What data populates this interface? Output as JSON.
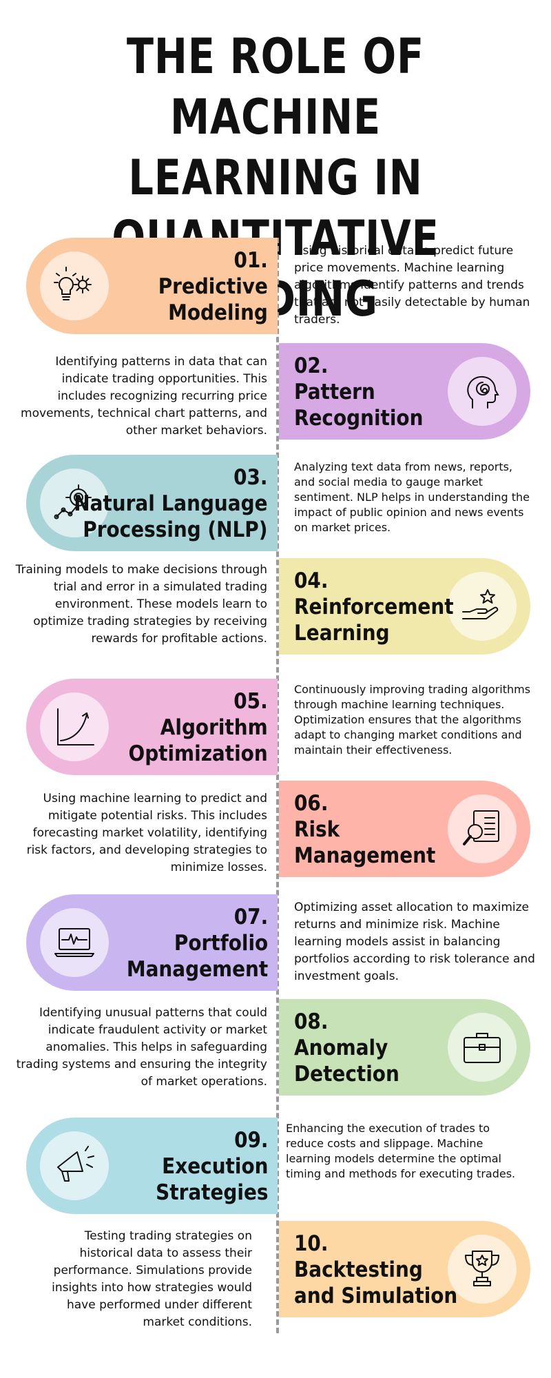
{
  "title": "THE ROLE OF MACHINE LEARNING IN QUANTITATIVE TRADING",
  "colors": {
    "peach": "#fcc8a0",
    "purple": "#d6a8e4",
    "teal": "#a8d4d8",
    "yellow": "#f1e8ab",
    "pink": "#f1b6dc",
    "salmon": "#ffb4aa",
    "lavender": "#c9b6f0",
    "green": "#c6e2b6",
    "cyan": "#aedde6",
    "orange": "#fdd8a4"
  },
  "steps": [
    {
      "number": "01.",
      "name": "Predictive\nModeling",
      "icon": "lightbulb-gear-icon",
      "description": "Using historical data to predict future price movements. Machine learning algorithms identify patterns and trends that are not easily detectable by human traders."
    },
    {
      "number": "02.",
      "name": "Pattern\nRecognition",
      "icon": "head-spiral-icon",
      "description": "Identifying patterns in data that can indicate trading opportunities. This includes recognizing recurring price movements, technical chart patterns, and other market behaviors."
    },
    {
      "number": "03.",
      "name": "Natural Language\nProcessing (NLP)",
      "icon": "target-icon",
      "description": "Analyzing text data from news, reports, and social media to gauge market sentiment. NLP helps in understanding the impact of public opinion and news events on market prices."
    },
    {
      "number": "04.",
      "name": "Reinforcement\nLearning",
      "icon": "hand-star-icon",
      "description": "Training models to make decisions through trial and error in a simulated trading environment. These models learn to optimize trading strategies by receiving rewards for profitable actions."
    },
    {
      "number": "05.",
      "name": "Algorithm\nOptimization",
      "icon": "growth-chart-icon",
      "description": "Continuously improving trading algorithms through machine learning techniques. Optimization ensures that the algorithms adapt to changing market conditions and maintain their effectiveness."
    },
    {
      "number": "06.",
      "name": "Risk\nManagement",
      "icon": "document-search-icon",
      "description": "Using machine learning to predict and mitigate potential risks. This includes forecasting market volatility, identifying risk factors, and developing strategies to minimize losses."
    },
    {
      "number": "07.",
      "name": "Portfolio\nManagement",
      "icon": "laptop-pulse-icon",
      "description": "Optimizing asset allocation to maximize returns and minimize risk. Machine learning models assist in balancing portfolios according to risk tolerance and investment goals."
    },
    {
      "number": "08.",
      "name": "Anomaly\nDetection",
      "icon": "briefcase-icon",
      "description": "Identifying unusual patterns that could indicate fraudulent activity or market anomalies. This helps in safeguarding trading systems and ensuring the integrity of market operations."
    },
    {
      "number": "09.",
      "name": "Execution\nStrategies",
      "icon": "megaphone-icon",
      "description": "Enhancing the execution of trades to reduce costs and slippage. Machine learning models determine the optimal timing and methods for executing trades."
    },
    {
      "number": "10.",
      "name": "Backtesting\nand Simulation",
      "icon": "trophy-icon",
      "description": "Testing trading strategies on historical data to assess their performance. Simulations provide insights into how strategies would have performed under different market conditions."
    }
  ]
}
